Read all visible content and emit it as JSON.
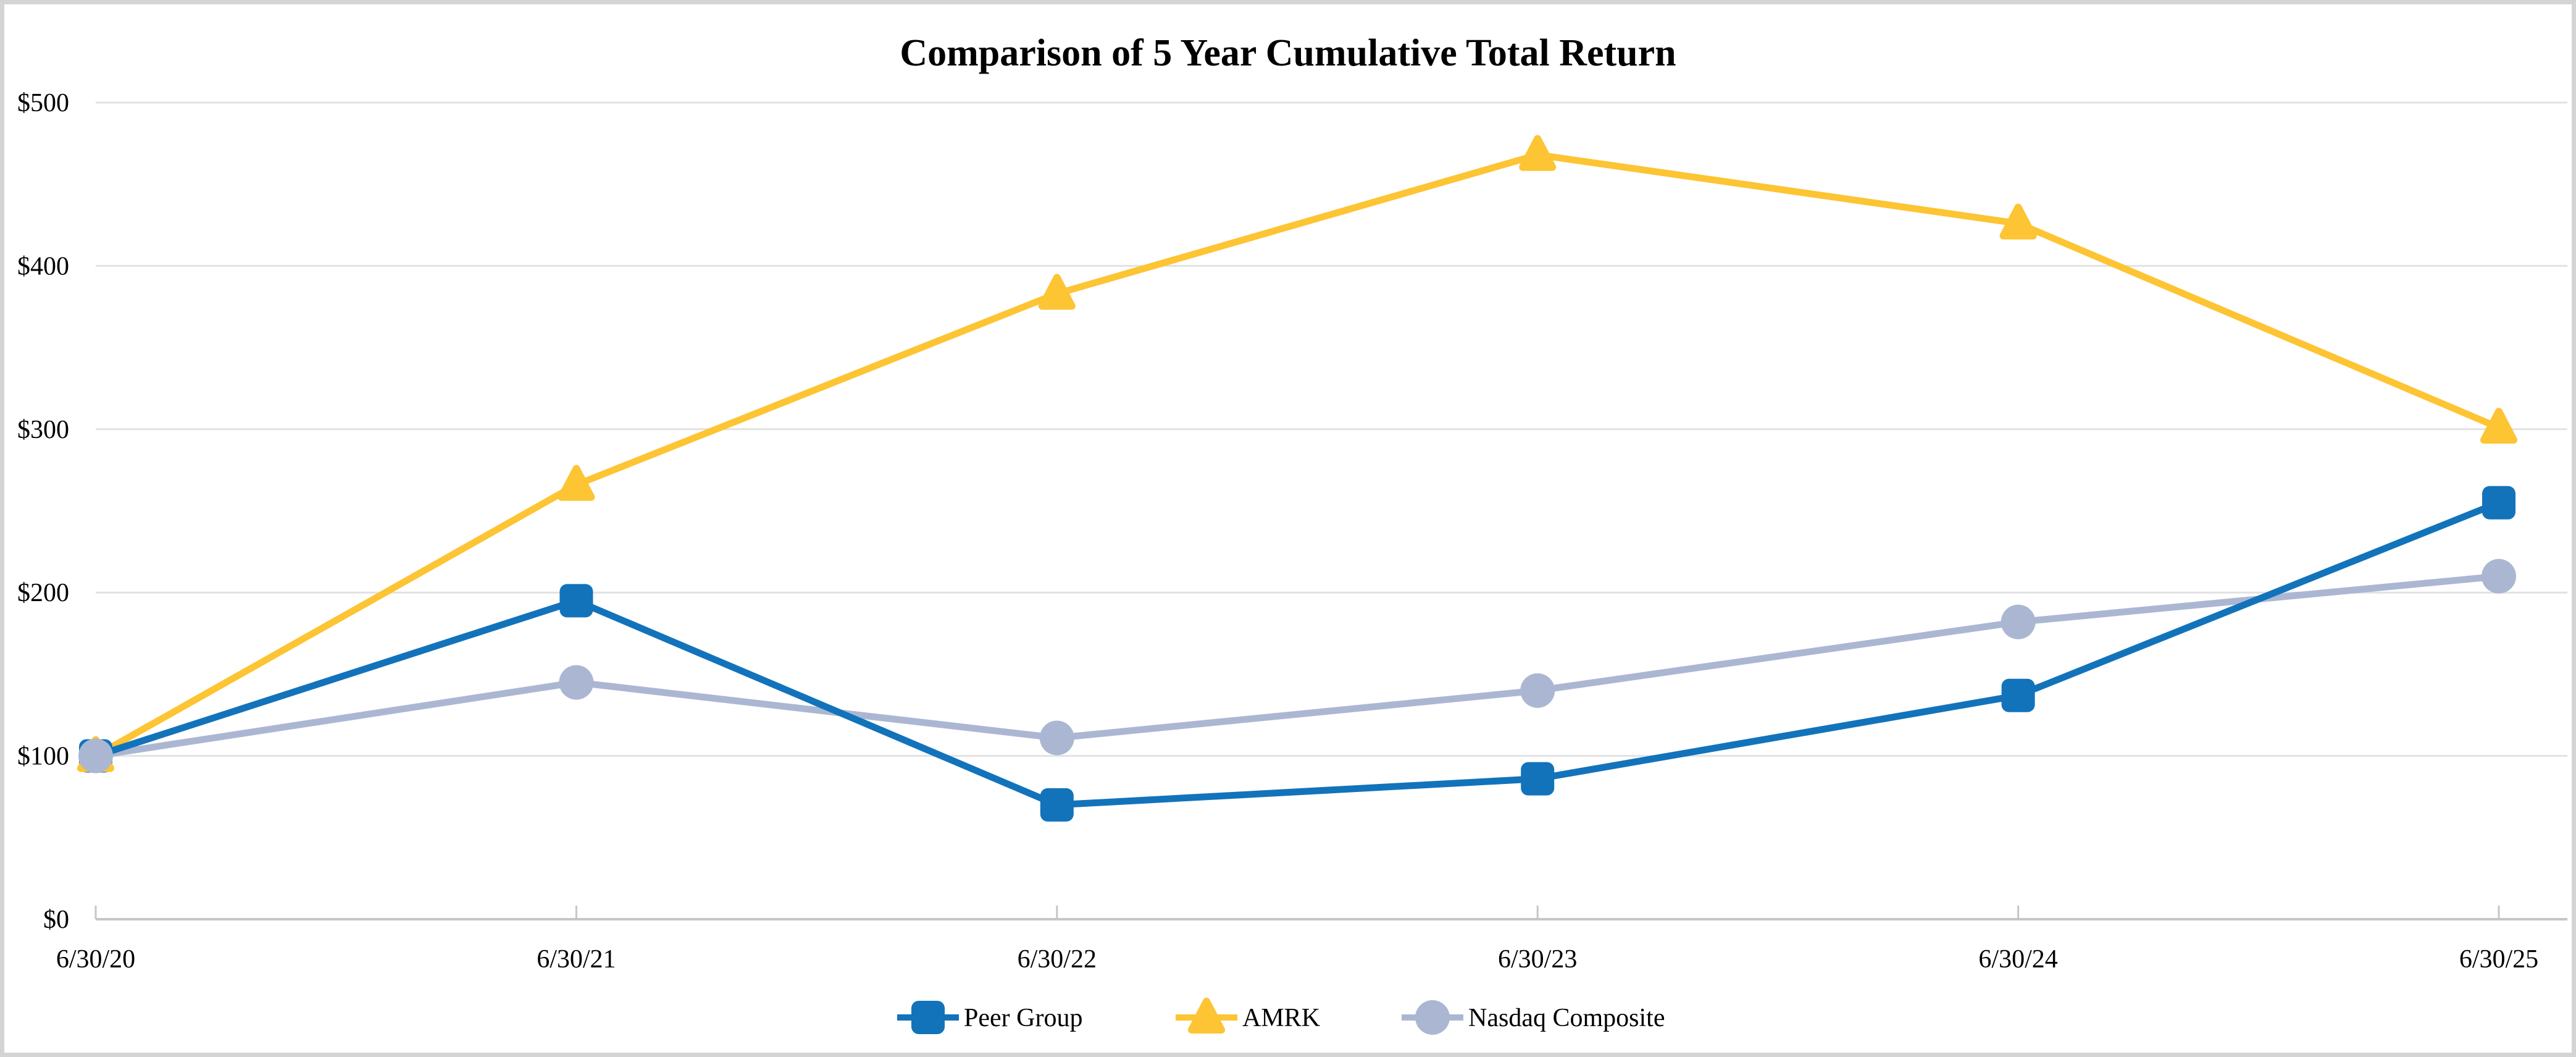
{
  "chart_data": {
    "type": "line",
    "title": "Comparison of 5 Year Cumulative Total Return",
    "categories": [
      "6/30/20",
      "6/30/21",
      "6/30/22",
      "6/30/23",
      "6/30/24",
      "6/30/25"
    ],
    "series": [
      {
        "name": "Peer Group",
        "marker": "square",
        "color": "#1273BB",
        "values": [
          100,
          195,
          70,
          86,
          137,
          255
        ]
      },
      {
        "name": "AMRK",
        "marker": "triangle",
        "color": "#FDC433",
        "values": [
          100,
          266,
          383,
          468,
          426,
          301
        ]
      },
      {
        "name": "Nasdaq Composite",
        "marker": "circle",
        "color": "#ABB7D2",
        "values": [
          100,
          145,
          111,
          140,
          182,
          210
        ]
      }
    ],
    "y_axis": {
      "ticks": [
        "$0",
        "$100",
        "$200",
        "$300",
        "$400",
        "$500"
      ],
      "tick_values": [
        0,
        100,
        200,
        300,
        400,
        500
      ],
      "min": 0,
      "max": 500,
      "prefix": "$"
    },
    "x_axis": {
      "labels": [
        "6/30/20",
        "6/30/21",
        "6/30/22",
        "6/30/23",
        "6/30/24",
        "6/30/25"
      ]
    },
    "legend_position": "bottom",
    "grid": "horizontal",
    "colors": {
      "gridline": "#E2E2E2",
      "axis": "#C6C6C6",
      "text": "#000000",
      "background": "#FFFFFF",
      "frame": "#D4D4D4"
    }
  }
}
